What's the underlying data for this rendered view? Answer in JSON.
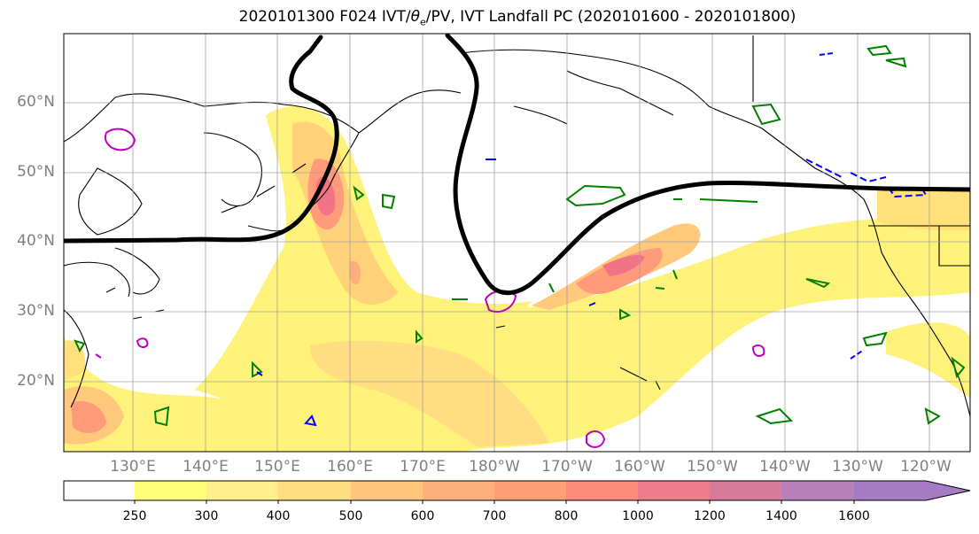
{
  "title_parts": {
    "prefix": "2020101300 F024 IVT/",
    "theta": "θ",
    "sub": "e",
    "suffix": "/PV, IVT Landfall PC (2020101600 - 2020101800)"
  },
  "lat_labels": [
    "60°N",
    "50°N",
    "40°N",
    "30°N",
    "20°N"
  ],
  "lon_labels": [
    "130°E",
    "140°E",
    "150°E",
    "160°E",
    "170°E",
    "180°W",
    "170°W",
    "160°W",
    "150°W",
    "140°W",
    "130°W",
    "120°W"
  ],
  "colorbar": {
    "ticks": [
      "250",
      "300",
      "400",
      "500",
      "600",
      "700",
      "800",
      "1000",
      "1200",
      "1400",
      "1600"
    ],
    "colors": [
      "#ffffff",
      "#ffff7a",
      "#ffee8a",
      "#ffdd80",
      "#ffc57a",
      "#ffb07a",
      "#ff9f7a",
      "#ff8a7a",
      "#ee7a8a",
      "#d87a9a",
      "#b880b8",
      "#a57cc4"
    ]
  },
  "colors": {
    "ivt_low": "#fff27a",
    "ivt_mid": "#ffc87a",
    "ivt_high": "#ff9a7a",
    "ivt_max": "#f07486",
    "pc_contour": "#000000",
    "theta_green": "#008000",
    "pv_blue": "#0000ff",
    "pv_magenta": "#c000c0",
    "grid": "#a0a0a0"
  }
}
